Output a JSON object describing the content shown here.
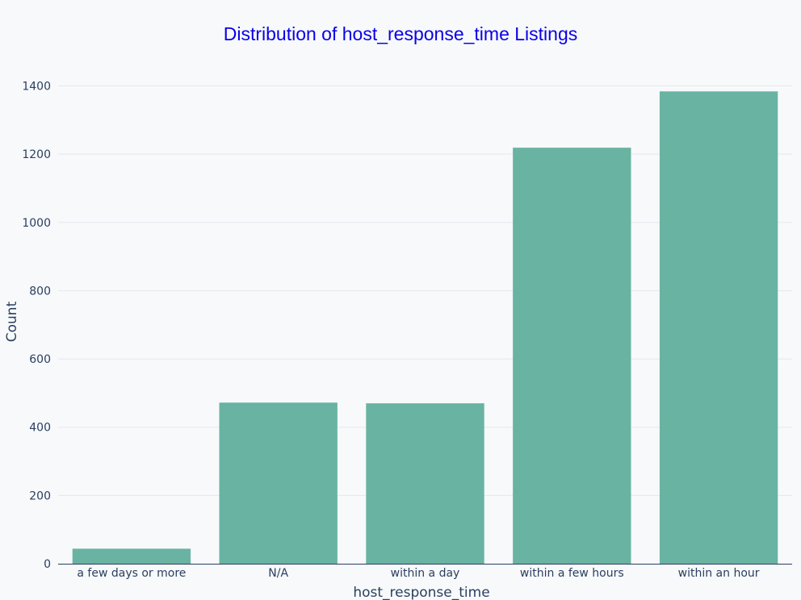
{
  "chart_data": {
    "type": "bar",
    "title": "Distribution of host_response_time Listings",
    "xlabel": "host_response_time",
    "ylabel": "Count",
    "categories": [
      "a few days or more",
      "N/A",
      "within a day",
      "within a few hours",
      "within an hour"
    ],
    "values": [
      44,
      472,
      470,
      1219,
      1384
    ],
    "ylim": [
      0,
      1458
    ],
    "yticks": [
      0,
      200,
      400,
      600,
      800,
      1000,
      1200,
      1400
    ],
    "grid": true,
    "bar_color": "#69b3a2",
    "background_color": "#f7f9fb",
    "title_color": "#0b00e6"
  }
}
